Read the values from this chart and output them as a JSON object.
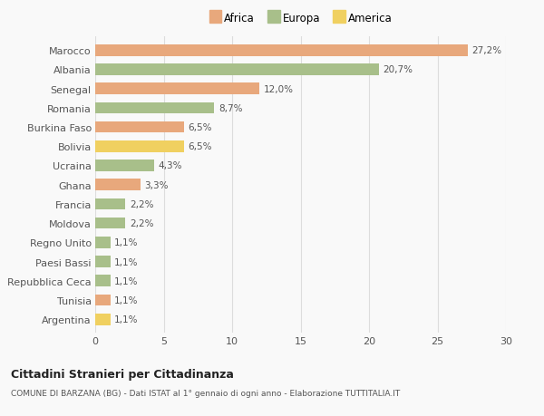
{
  "countries": [
    "Marocco",
    "Albania",
    "Senegal",
    "Romania",
    "Burkina Faso",
    "Bolivia",
    "Ucraina",
    "Ghana",
    "Francia",
    "Moldova",
    "Regno Unito",
    "Paesi Bassi",
    "Repubblica Ceca",
    "Tunisia",
    "Argentina"
  ],
  "values": [
    27.2,
    20.7,
    12.0,
    8.7,
    6.5,
    6.5,
    4.3,
    3.3,
    2.2,
    2.2,
    1.1,
    1.1,
    1.1,
    1.1,
    1.1
  ],
  "labels": [
    "27,2%",
    "20,7%",
    "12,0%",
    "8,7%",
    "6,5%",
    "6,5%",
    "4,3%",
    "3,3%",
    "2,2%",
    "2,2%",
    "1,1%",
    "1,1%",
    "1,1%",
    "1,1%",
    "1,1%"
  ],
  "continents": [
    "Africa",
    "Europa",
    "Africa",
    "Europa",
    "Africa",
    "America",
    "Europa",
    "Africa",
    "Europa",
    "Europa",
    "Europa",
    "Europa",
    "Europa",
    "Africa",
    "America"
  ],
  "colors": {
    "Africa": "#E8A87C",
    "Europa": "#A8BF8A",
    "America": "#F0D060"
  },
  "legend_labels": [
    "Africa",
    "Europa",
    "America"
  ],
  "legend_colors": [
    "#E8A87C",
    "#A8BF8A",
    "#F0D060"
  ],
  "xlim": [
    0,
    30
  ],
  "xticks": [
    0,
    5,
    10,
    15,
    20,
    25,
    30
  ],
  "title": "Cittadini Stranieri per Cittadinanza",
  "subtitle": "COMUNE DI BARZANA (BG) - Dati ISTAT al 1° gennaio di ogni anno - Elaborazione TUTTITALIA.IT",
  "bg_color": "#f9f9f9",
  "grid_color": "#dddddd",
  "bar_height": 0.6,
  "label_fontsize": 7.5,
  "tick_fontsize": 8.0,
  "legend_fontsize": 8.5
}
